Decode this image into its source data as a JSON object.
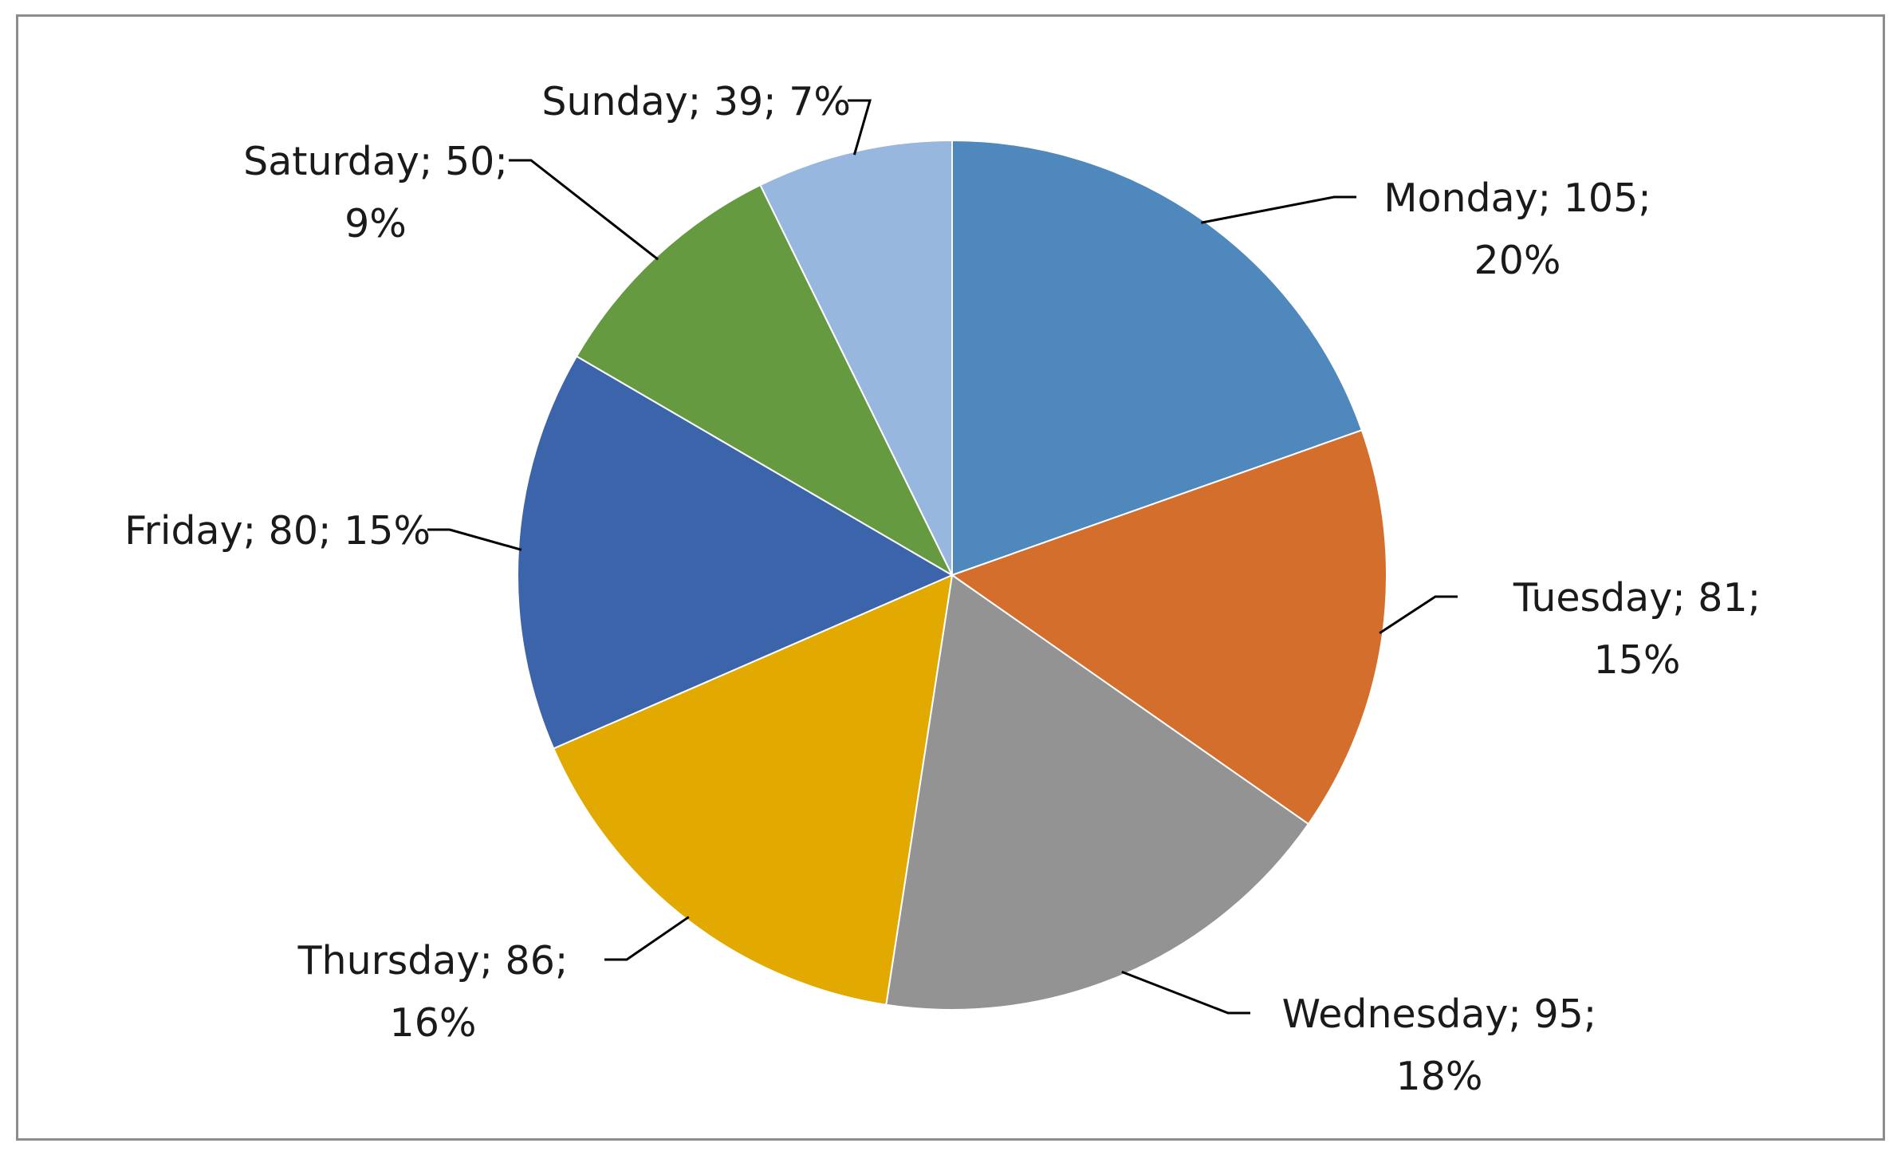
{
  "chart_data": {
    "type": "pie",
    "title": "",
    "start_angle_deg": 0,
    "direction": "clockwise",
    "legend": "none",
    "data_label_format": "{category}; {value}; {percent}",
    "slices": [
      {
        "category": "Monday",
        "value": 105,
        "percent": "20%",
        "color": "#4f88bd"
      },
      {
        "category": "Tuesday",
        "value": 81,
        "percent": "15%",
        "color": "#d46e2c"
      },
      {
        "category": "Wednesday",
        "value": 95,
        "percent": "18%",
        "color": "#939393"
      },
      {
        "category": "Thursday",
        "value": 86,
        "percent": "16%",
        "color": "#e2a900"
      },
      {
        "category": "Friday",
        "value": 80,
        "percent": "15%",
        "color": "#3c64aa"
      },
      {
        "category": "Saturday",
        "value": 50,
        "percent": "9%",
        "color": "#659a40"
      },
      {
        "category": "Sunday",
        "value": 39,
        "percent": "7%",
        "color": "#97b7df"
      }
    ]
  }
}
